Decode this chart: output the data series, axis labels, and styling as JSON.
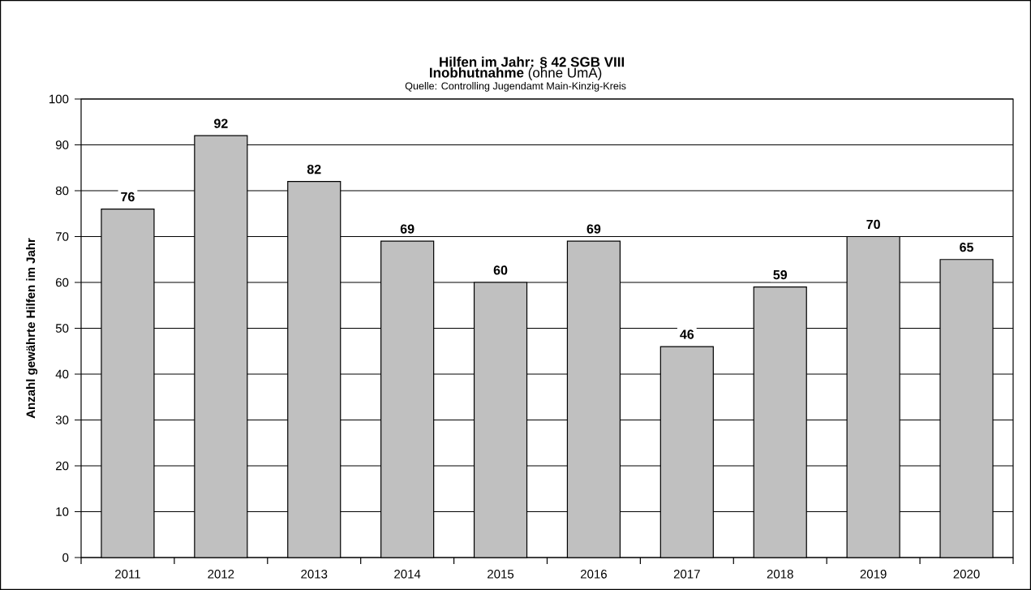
{
  "chart_data": {
    "type": "bar",
    "title": "Hilfen im Jahr: § 42 SGB VIII",
    "subtitle": "**Inobhutnahme** (ohne UmA)",
    "annotations": [
      "Quelle: Controlling Jugendamt Main-Kinzig-Kreis"
    ],
    "ylabel": "Anzahl gewährte Hilfen im Jahr",
    "categories": [
      "2011",
      "2012",
      "2013",
      "2014",
      "2015",
      "2016",
      "2017",
      "2018",
      "2019",
      "2020"
    ],
    "values": [
      76,
      92,
      82,
      69,
      60,
      69,
      46,
      59,
      70,
      65
    ],
    "color": "#c0c0c0",
    "ylim": [
      0,
      100
    ],
    "yticks": [
      0,
      10,
      20,
      30,
      40,
      50,
      60,
      70,
      80,
      90,
      100
    ],
    "grid": "y",
    "data_labels": true
  }
}
